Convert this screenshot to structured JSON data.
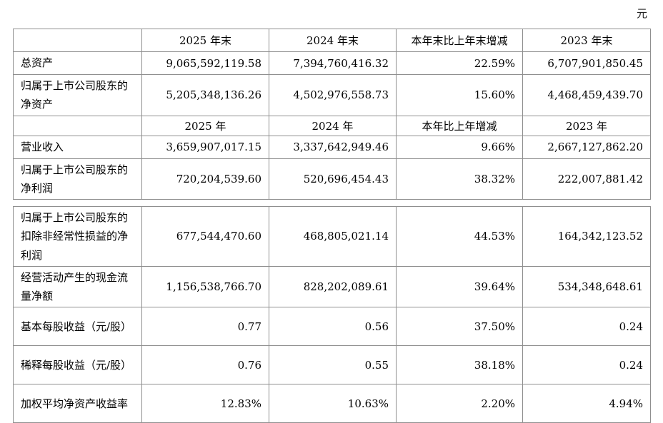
{
  "page": {
    "unit_note": "元"
  },
  "table1": {
    "yearend_header": {
      "col0": "",
      "cols": [
        "2025 年末",
        "2024 年末",
        "本年末比上年末增减",
        "2023 年末"
      ]
    },
    "yearend_rows": [
      {
        "label": "总资产",
        "values": [
          "9,065,592,119.58",
          "7,394,760,416.32",
          "22.59%",
          "6,707,901,850.45"
        ]
      },
      {
        "label": "归属于上市公司股东的净资产",
        "values": [
          "5,205,348,136.26",
          "4,502,976,558.73",
          "15.60%",
          "4,468,459,439.70"
        ]
      }
    ],
    "year_header": {
      "col0": "",
      "cols": [
        "2025 年",
        "2024 年",
        "本年比上年增减",
        "2023 年"
      ]
    },
    "year_rows": [
      {
        "label": "营业收入",
        "values": [
          "3,659,907,017.15",
          "3,337,642,949.46",
          "9.66%",
          "2,667,127,862.20"
        ]
      },
      {
        "label": "归属于上市公司股东的净利润",
        "values": [
          "720,204,539.60",
          "520,696,454.43",
          "38.32%",
          "222,007,881.42"
        ]
      }
    ]
  },
  "table2": {
    "rows": [
      {
        "label": "归属于上市公司股东的扣除非经常性损益的净利润",
        "values": [
          "677,544,470.60",
          "468,805,021.14",
          "44.53%",
          "164,342,123.52"
        ]
      },
      {
        "label": "经营活动产生的现金流量净额",
        "values": [
          "1,156,538,766.70",
          "828,202,089.61",
          "39.64%",
          "534,348,648.61"
        ]
      },
      {
        "label": "基本每股收益（元/股）",
        "values": [
          "0.77",
          "0.56",
          "37.50%",
          "0.24"
        ]
      },
      {
        "label": "稀释每股收益（元/股）",
        "values": [
          "0.76",
          "0.55",
          "38.18%",
          "0.24"
        ]
      },
      {
        "label": "加权平均净资产收益率",
        "values": [
          "12.83%",
          "10.63%",
          "2.20%",
          "4.94%"
        ]
      }
    ]
  }
}
